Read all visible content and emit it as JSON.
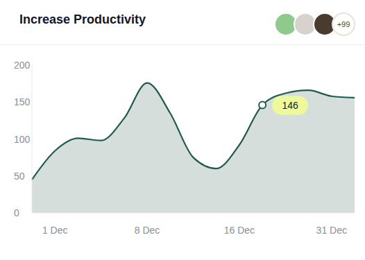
{
  "chart_data": {
    "type": "area",
    "title": "Increase Productivity",
    "badge": "+99",
    "categories": [
      null,
      "1 Dec",
      null,
      null,
      null,
      "8 Dec",
      null,
      null,
      null,
      "16 Dec",
      null,
      null,
      null,
      "31 Dec",
      null
    ],
    "values": [
      45,
      84,
      101,
      98,
      128,
      176,
      135,
      75,
      60,
      92,
      146,
      162,
      166,
      158,
      156
    ],
    "color": "#1f5a4f",
    "ylim": [
      0,
      200
    ],
    "yticks": [
      0,
      50,
      100,
      150,
      200
    ],
    "grid": false,
    "highlight": {
      "index": 10,
      "value": 146
    }
  }
}
